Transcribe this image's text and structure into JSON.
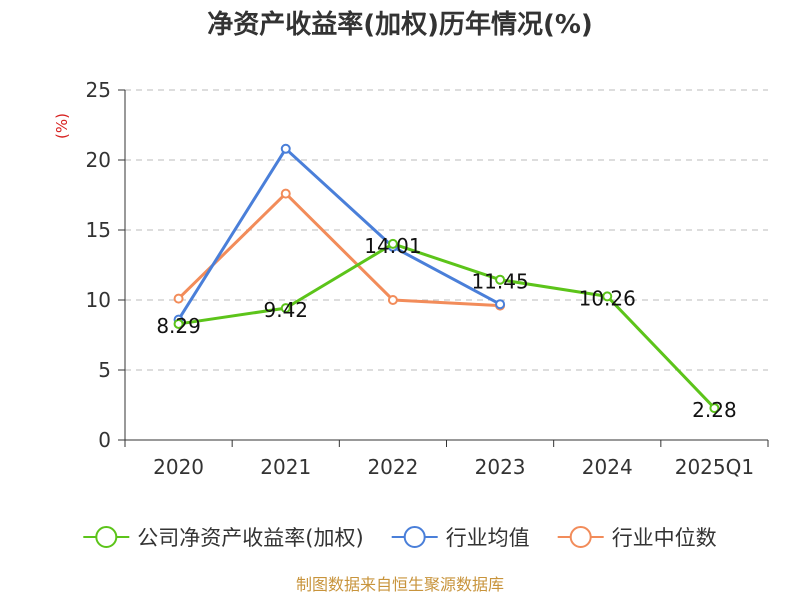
{
  "chart_data": {
    "type": "line",
    "title": "净资产收益率(加权)历年情况(%)",
    "ylabel": "(%)",
    "categories": [
      "2020",
      "2021",
      "2022",
      "2023",
      "2024",
      "2025Q1"
    ],
    "ylim": [
      0,
      25
    ],
    "yticks": [
      0,
      5,
      10,
      15,
      20,
      25
    ],
    "grid": true,
    "legend_position": "bottom",
    "series": [
      {
        "name": "公司净资产收益率(加权)",
        "color": "#5cc41a",
        "values": [
          8.29,
          9.42,
          14.01,
          11.45,
          10.26,
          2.28
        ],
        "labels": [
          "8.29",
          "9.42",
          "14.01",
          "11.45",
          "10.26",
          "2.28"
        ]
      },
      {
        "name": "行业均值",
        "color": "#4a7fd9",
        "values": [
          8.6,
          20.8,
          13.8,
          9.7,
          null,
          null
        ]
      },
      {
        "name": "行业中位数",
        "color": "#f28c5a",
        "values": [
          10.1,
          17.6,
          10.0,
          9.6,
          null,
          null
        ]
      }
    ]
  },
  "footer": {
    "source": "制图数据来自恒生聚源数据库",
    "color": "#c8943c"
  },
  "unit_color": "#d7201f"
}
